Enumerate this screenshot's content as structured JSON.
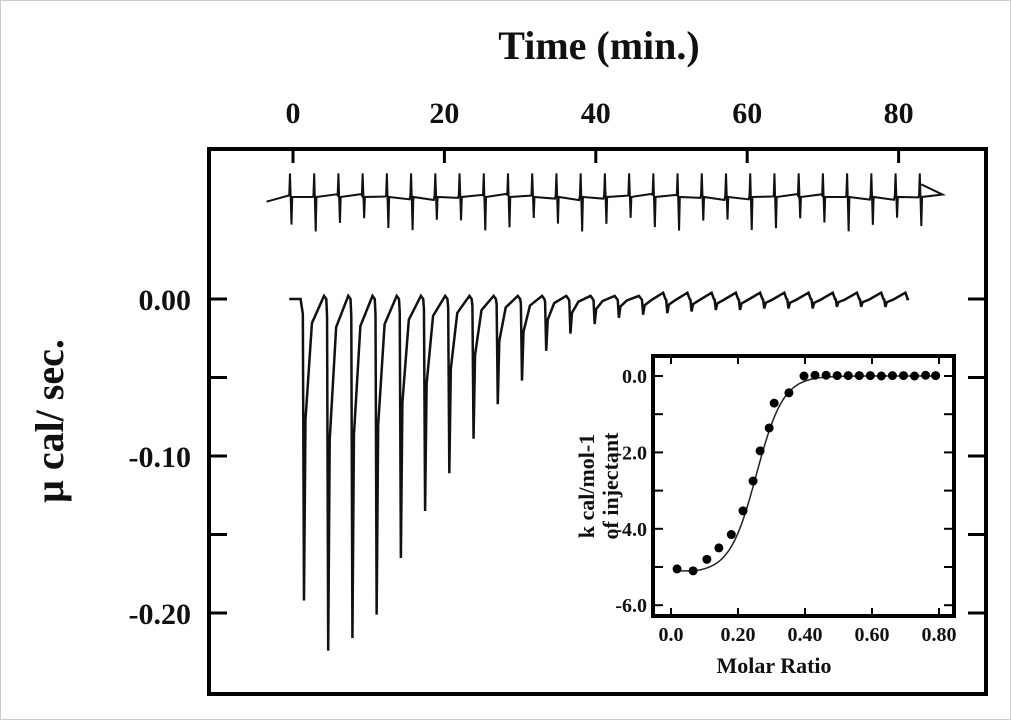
{
  "chart_data": [
    {
      "type": "line",
      "title": "Time (min.)",
      "ylabel": "μ cal/ sec.",
      "xlim": [
        -4,
        83
      ],
      "x_ticks": [
        "0",
        "20",
        "40",
        "60",
        "80"
      ],
      "y_ticks": [
        "0.00",
        "-0.10",
        "-0.20"
      ],
      "y_tick_values": [
        0,
        -0.1,
        -0.2
      ],
      "x_tick_values": [
        0,
        20,
        40,
        60,
        80
      ],
      "reference_trace": {
        "offset": 0.065,
        "injection_start": -0.5,
        "injection_interval": 3.2,
        "count": 27,
        "peak_depth": -0.022
      },
      "titration_trace": {
        "injection_times": [
          1.3,
          4.5,
          7.7,
          10.9,
          14.1,
          17.3,
          20.5,
          23.7,
          26.9,
          30.1,
          33.3,
          36.5,
          39.7,
          42.9,
          46.1,
          49.3,
          52.5,
          55.7,
          58.9,
          62.1,
          65.3,
          68.5,
          71.7,
          74.9,
          78.1
        ],
        "peak_values": [
          -0.192,
          -0.224,
          -0.216,
          -0.201,
          -0.165,
          -0.135,
          -0.111,
          -0.089,
          -0.067,
          -0.052,
          -0.033,
          -0.022,
          -0.016,
          -0.012,
          -0.01,
          -0.009,
          -0.008,
          -0.007,
          -0.007,
          -0.006,
          -0.006,
          -0.006,
          -0.005,
          -0.005,
          -0.005
        ]
      }
    },
    {
      "type": "scatter",
      "xlabel": "Molar Ratio",
      "ylabel_line1": "k cal/mol-1",
      "ylabel_line2": "of injectant",
      "xlim": [
        -0.03,
        0.85
      ],
      "ylim": [
        -6.2,
        0.5
      ],
      "x_ticks": [
        "0.0",
        "0.20",
        "0.40",
        "0.60",
        "0.80"
      ],
      "x_tick_values": [
        0,
        0.2,
        0.4,
        0.6,
        0.8
      ],
      "y_ticks": [
        "0.0",
        "-2.0",
        "-4.0",
        "-6.0"
      ],
      "y_tick_values": [
        0,
        -2,
        -4,
        -6
      ],
      "x": [
        0.018,
        0.066,
        0.107,
        0.143,
        0.18,
        0.215,
        0.245,
        0.266,
        0.293,
        0.308,
        0.352,
        0.397,
        0.43,
        0.463,
        0.496,
        0.529,
        0.562,
        0.595,
        0.628,
        0.661,
        0.694,
        0.727,
        0.76,
        0.79
      ],
      "y": [
        -5.05,
        -5.1,
        -4.8,
        -4.5,
        -4.15,
        -3.53,
        -2.75,
        -1.96,
        -1.36,
        -0.71,
        -0.44,
        0.0,
        0.02,
        0.02,
        0.01,
        0.01,
        0.01,
        0.01,
        0.0,
        0.01,
        0.01,
        0.0,
        0.02,
        0.01
      ]
    }
  ]
}
